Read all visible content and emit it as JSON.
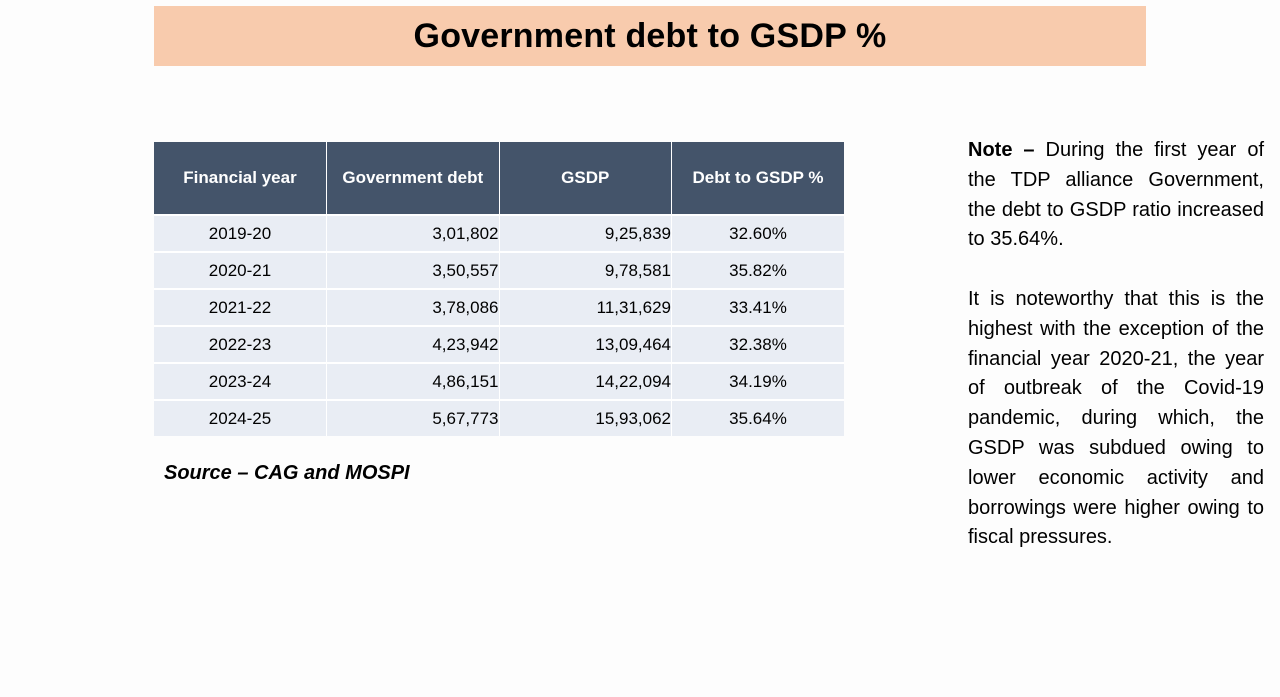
{
  "title": "Government debt to GSDP %",
  "table": {
    "headers": [
      "Financial year",
      "Government debt",
      "GSDP",
      "Debt to GSDP %"
    ],
    "rows": [
      {
        "year": "2019-20",
        "debt": "3,01,802",
        "gsdp": "9,25,839",
        "pct": "32.60%"
      },
      {
        "year": "2020-21",
        "debt": "3,50,557",
        "gsdp": "9,78,581",
        "pct": "35.82%"
      },
      {
        "year": "2021-22",
        "debt": "3,78,086",
        "gsdp": "11,31,629",
        "pct": "33.41%"
      },
      {
        "year": "2022-23",
        "debt": "4,23,942",
        "gsdp": "13,09,464",
        "pct": "32.38%"
      },
      {
        "year": "2023-24",
        "debt": "4,86,151",
        "gsdp": "14,22,094",
        "pct": "34.19%"
      },
      {
        "year": "2024-25",
        "debt": "5,67,773",
        "gsdp": "15,93,062",
        "pct": "35.64%"
      }
    ]
  },
  "source": "Source – CAG and MOSPI",
  "note": {
    "label": "Note –",
    "text1": " During the first year of the TDP alliance Government, the debt to GSDP ratio increased to 35.64%.",
    "text2": "It is noteworthy that this is the highest with the exception of the financial year 2020-21, the year of outbreak of the Covid-19 pandemic, during which, the GSDP was subdued owing to lower economic activity and borrowings were higher owing to fiscal pressures."
  },
  "colors": {
    "title_banner": "#f8cbad",
    "header_bg": "#44546a",
    "row_bg": "#e9edf4"
  }
}
